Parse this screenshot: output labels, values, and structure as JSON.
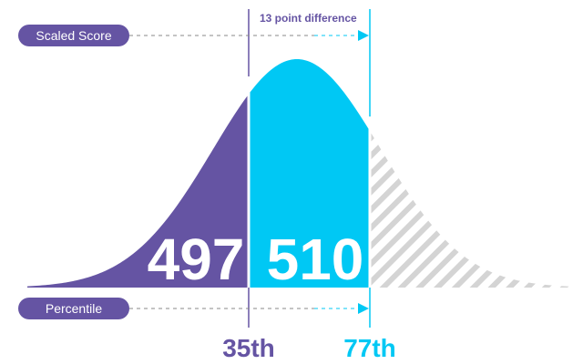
{
  "labels": {
    "scaled_score": "Scaled Score",
    "percentile": "Percentile",
    "difference": "13 point difference"
  },
  "scores": {
    "low": "497",
    "high": "510"
  },
  "percentiles": {
    "low": "35th",
    "high": "77th"
  },
  "colors": {
    "purple": "#6554a3",
    "cyan": "#00c8f4",
    "hatch": "#d4d4d4",
    "dash": "#8a8a8a",
    "white": "#ffffff"
  }
}
